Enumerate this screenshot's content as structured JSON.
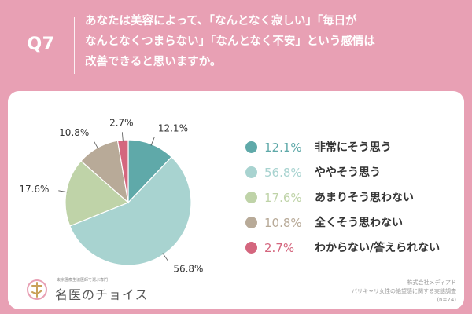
{
  "question": {
    "number": "Q7",
    "lines": [
      "あなたは美容によって、「なんとなく寂しい」「毎日が",
      "なんとなくつまらない」「なんとなく不安」という感情は",
      "改善できると思いますか。"
    ]
  },
  "colors": {
    "background": "#e8a0b4",
    "card": "#ffffff"
  },
  "chart_data": {
    "type": "pie",
    "title": "",
    "slices": [
      {
        "label": "非常にそう思う",
        "value": 12.1,
        "pct_text": "12.1%",
        "color": "#5fa9a9"
      },
      {
        "label": "ややそう思う",
        "value": 56.8,
        "pct_text": "56.8%",
        "color": "#a8d3d0"
      },
      {
        "label": "あまりそう思わない",
        "value": 17.6,
        "pct_text": "17.6%",
        "color": "#bfd3a8"
      },
      {
        "label": "全くそう思わない",
        "value": 10.8,
        "pct_text": "10.8%",
        "color": "#b8aa98"
      },
      {
        "label": "わからない/答えられない",
        "value": 2.7,
        "pct_text": "2.7%",
        "color": "#d4667e"
      }
    ],
    "start": "12 o'clock",
    "direction": "clockwise",
    "legend_position": "right"
  },
  "logo": {
    "tagline": "東京医療生協医師で選ぶ専門",
    "name": "名医のチョイス"
  },
  "source": {
    "company": "株式会社メディアド",
    "survey": "バリキャリ女性の絶望感に関する実態調査",
    "sample": "(n=74)"
  }
}
